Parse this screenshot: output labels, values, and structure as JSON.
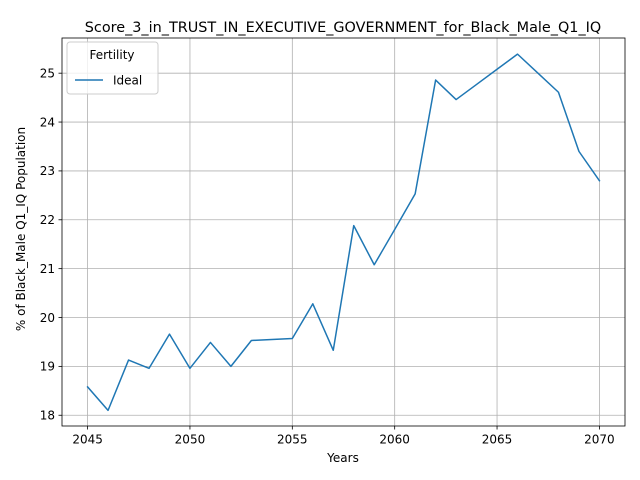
{
  "chart_data": {
    "type": "line",
    "title": "Score_3_in_TRUST_IN_EXECUTIVE_GOVERNMENT_for_Black_Male_Q1_IQ",
    "xlabel": "Years",
    "ylabel": "% of Black_Male Q1_IQ Population",
    "xlim": [
      2043.75,
      2071.25
    ],
    "ylim": [
      17.78,
      25.72
    ],
    "xticks": [
      2045,
      2050,
      2055,
      2060,
      2065,
      2070
    ],
    "yticks": [
      18,
      19,
      20,
      21,
      22,
      23,
      24,
      25
    ],
    "grid": true,
    "legend": {
      "title": "Fertility",
      "placement": "upper-left"
    },
    "series": [
      {
        "name": "Ideal",
        "color": "#1f77b4",
        "x": [
          2045,
          2046,
          2047,
          2048,
          2049,
          2050,
          2051,
          2052,
          2053,
          2054,
          2055,
          2056,
          2057,
          2058,
          2059,
          2060,
          2061,
          2062,
          2063,
          2064,
          2065,
          2066,
          2067,
          2068,
          2069,
          2070
        ],
        "y": [
          18.58,
          18.1,
          19.13,
          18.96,
          19.66,
          18.96,
          19.49,
          19.0,
          19.53,
          19.55,
          19.57,
          20.28,
          19.33,
          21.88,
          21.08,
          21.8,
          22.53,
          24.86,
          24.46,
          24.77,
          25.08,
          25.39,
          25.0,
          24.61,
          23.4,
          22.8
        ]
      }
    ]
  }
}
